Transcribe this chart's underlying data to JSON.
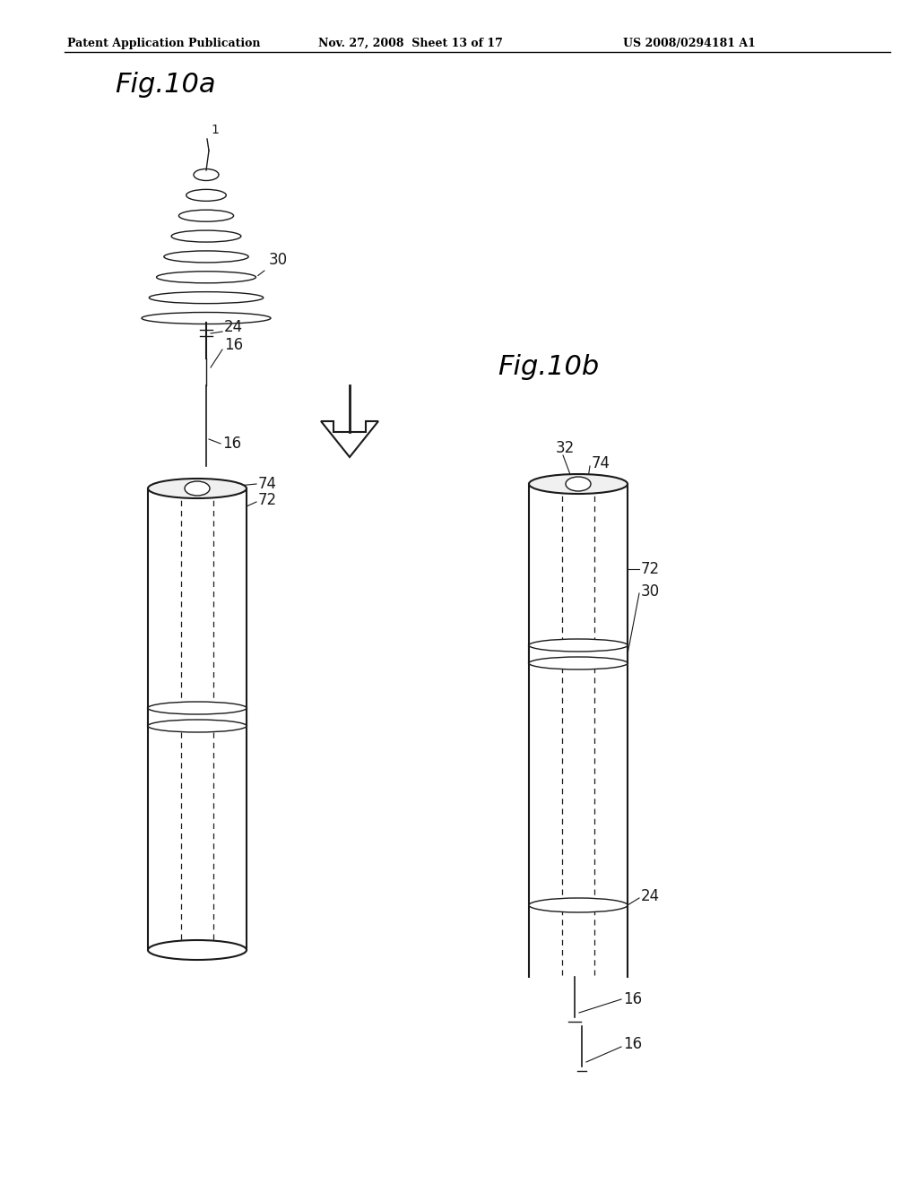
{
  "background_color": "#ffffff",
  "header_text": "Patent Application Publication",
  "header_date": "Nov. 27, 2008  Sheet 13 of 17",
  "header_patent": "US 2008/0294181 A1",
  "fig10a_title": "Fig.10a",
  "fig10b_title": "Fig.10b"
}
